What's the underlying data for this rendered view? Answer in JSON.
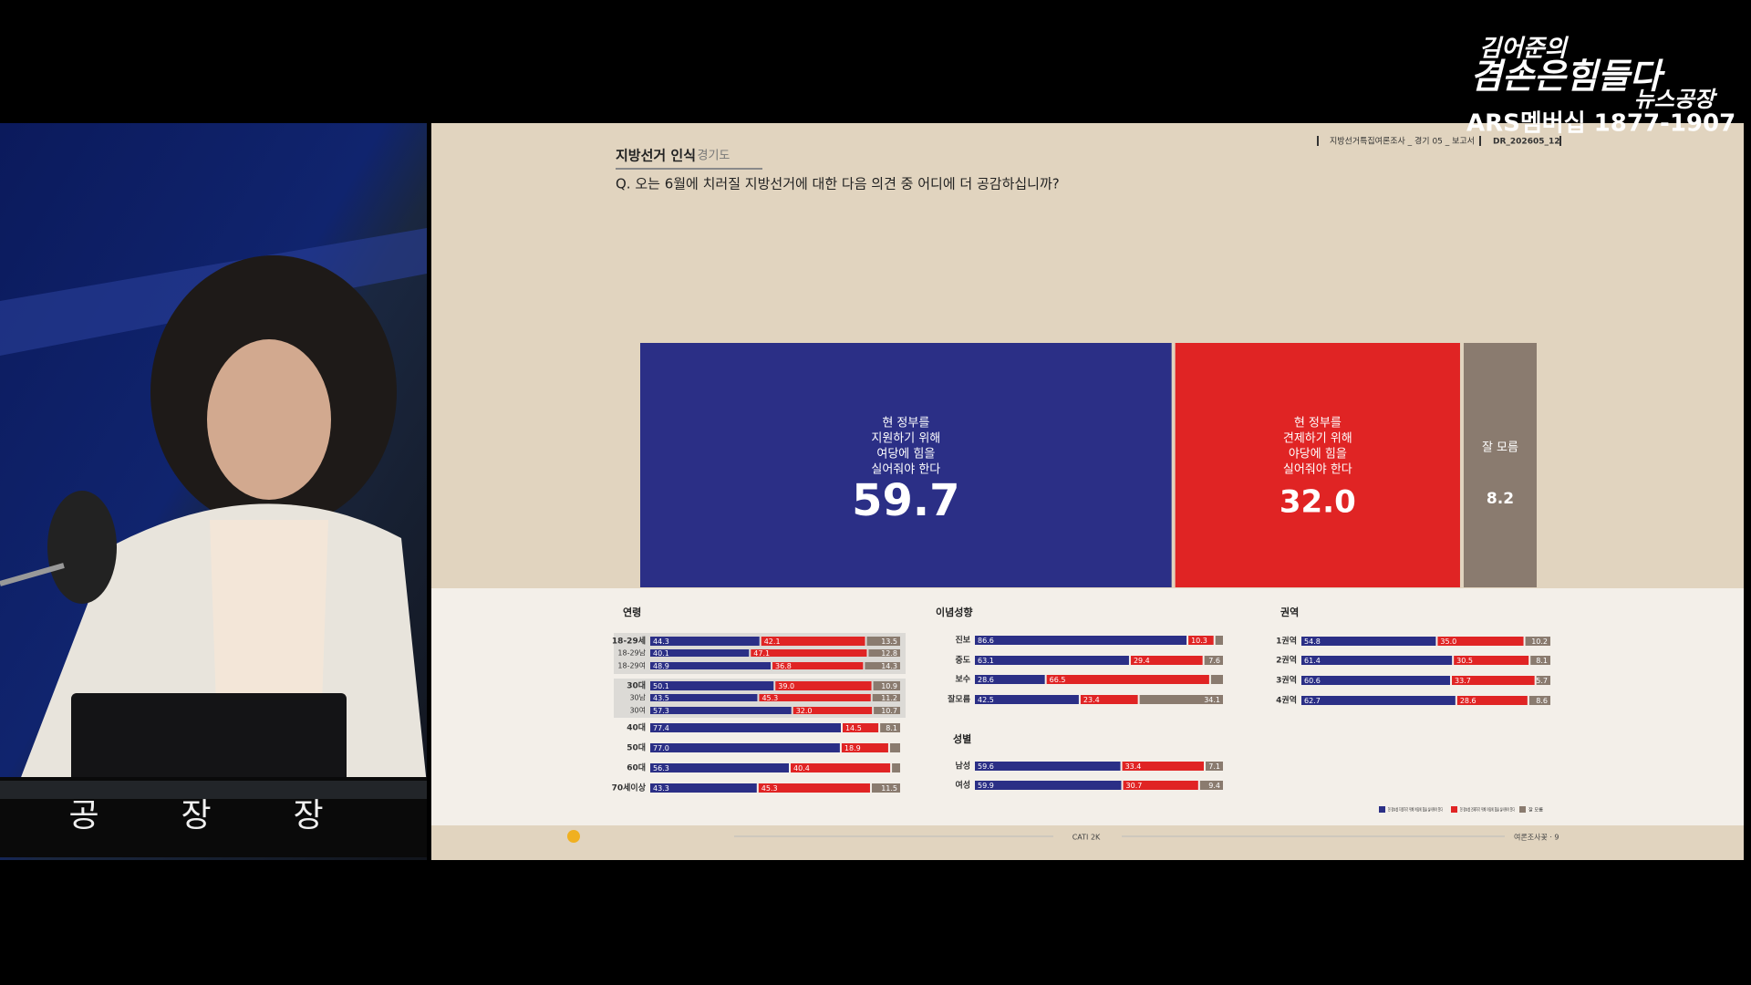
{
  "overlay": {
    "logo_lines": [
      "김어준의",
      "겸손은힘들다",
      "뉴스공장"
    ],
    "membership": "ARS멤버십 1877-1907",
    "podium": [
      "공",
      "장",
      "장"
    ]
  },
  "slide": {
    "header": {
      "section": "지방선거 인식",
      "region": ": 경기도",
      "meta": "지방선거특집여론조사 _ 경기 05 _ 보고서",
      "code": "DR_202605_12"
    },
    "question": "Q. 오는 6월에 치러질 지방선거에 대한 다음 의견 중 어디에 더 공감하십니까?",
    "colors": [
      "#2b2f86",
      "#e02424",
      "#8a7b6f"
    ],
    "main": {
      "labels": [
        [
          "현 정부를",
          "지원하기 위해",
          "여당에 힘을",
          "실어줘야 한다"
        ],
        [
          "현 정부를",
          "견제하기 위해",
          "야당에 힘을",
          "실어줘야 한다"
        ],
        [
          "잘 모름"
        ]
      ],
      "values": [
        59.7,
        32,
        8.2
      ],
      "value_labels": [
        "59.7",
        "32.0",
        "8.2"
      ]
    },
    "breakdowns": [
      {
        "title": "연령",
        "rows": [
          {
            "label": "18-29세",
            "values": [
              44.3,
              42.1,
              13.5
            ],
            "value_labels": [
              "44.3",
              "42.1",
              "13.5"
            ]
          },
          {
            "label": "18-29남",
            "values": [
              40.1,
              47.1,
              12.8
            ],
            "value_labels": [
              "40.1",
              "47.1",
              "12.8"
            ]
          },
          {
            "label": "18-29여",
            "values": [
              48.9,
              36.8,
              14.3
            ],
            "value_labels": [
              "48.9",
              "36.8",
              "14.3"
            ]
          },
          {
            "label": "30대",
            "values": [
              50.1,
              39,
              10.9
            ],
            "value_labels": [
              "50.1",
              "39.0",
              "10.9"
            ]
          },
          {
            "label": "30남",
            "values": [
              43.5,
              45.3,
              11.2
            ],
            "value_labels": [
              "43.5",
              "45.3",
              "11.2"
            ]
          },
          {
            "label": "30여",
            "values": [
              57.3,
              32,
              10.7
            ],
            "value_labels": [
              "57.3",
              "32.0",
              "10.7"
            ]
          },
          {
            "label": "40대",
            "values": [
              77.4,
              14.5,
              8.1
            ],
            "value_labels": [
              "77.4",
              "14.5",
              "8.1"
            ]
          },
          {
            "label": "50대",
            "values": [
              77,
              18.9,
              4.1
            ],
            "value_labels": [
              "77.0",
              "18.9",
              null
            ]
          },
          {
            "label": "60대",
            "values": [
              56.3,
              40.4,
              3.3
            ],
            "value_labels": [
              "56.3",
              "40.4",
              null
            ]
          },
          {
            "label": "70세이상",
            "values": [
              43.3,
              45.3,
              11.5
            ],
            "value_labels": [
              "43.3",
              "45.3",
              "11.5"
            ]
          }
        ]
      },
      {
        "title": "이념성향",
        "rows": [
          {
            "label": "진보",
            "values": [
              86.6,
              10.3,
              3.1
            ],
            "value_labels": [
              "86.6",
              "10.3",
              null
            ]
          },
          {
            "label": "중도",
            "values": [
              63.1,
              29.4,
              7.6
            ],
            "value_labels": [
              "63.1",
              "29.4",
              "7.6"
            ]
          },
          {
            "label": "보수",
            "values": [
              28.6,
              66.5,
              4.9
            ],
            "value_labels": [
              "28.6",
              "66.5",
              null
            ]
          },
          {
            "label": "잘모름",
            "values": [
              42.5,
              23.4,
              34.1
            ],
            "value_labels": [
              "42.5",
              "23.4",
              "34.1"
            ]
          }
        ]
      },
      {
        "title": "성별",
        "rows": [
          {
            "label": "남성",
            "values": [
              59.6,
              33.4,
              7.1
            ],
            "value_labels": [
              "59.6",
              "33.4",
              "7.1"
            ]
          },
          {
            "label": "여성",
            "values": [
              59.9,
              30.7,
              9.4
            ],
            "value_labels": [
              "59.9",
              "30.7",
              "9.4"
            ]
          }
        ]
      },
      {
        "title": "권역",
        "rows": [
          {
            "label": "1권역",
            "values": [
              54.8,
              35,
              10.2
            ],
            "value_labels": [
              "54.8",
              "35.0",
              "10.2"
            ]
          },
          {
            "label": "2권역",
            "values": [
              61.4,
              30.5,
              8.1
            ],
            "value_labels": [
              "61.4",
              "30.5",
              "8.1"
            ]
          },
          {
            "label": "3권역",
            "values": [
              60.6,
              33.7,
              5.7
            ],
            "value_labels": [
              "60.6",
              "33.7",
              "5.7"
            ]
          },
          {
            "label": "4권역",
            "values": [
              62.7,
              28.6,
              8.6
            ],
            "value_labels": [
              "62.7",
              "28.6",
              "8.6"
            ]
          }
        ]
      }
    ],
    "legend": [
      "현 정부를 지원하기 위해 여당에 힘을 실어줘야 한다",
      "현 정부를 견제하기 위해 야당에 힘을 실어줘야 한다",
      "잘 모름"
    ],
    "footer": {
      "center": "CATI 2K",
      "right": "여론조사꽃 · 9"
    }
  }
}
